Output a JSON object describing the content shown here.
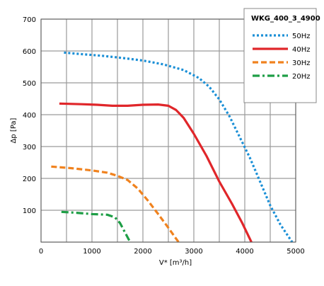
{
  "chart_data": {
    "type": "line",
    "title": "",
    "xlabel": "V* [m³/h]",
    "ylabel": "Δp [Pa]",
    "xlim": [
      0,
      5000
    ],
    "ylim": [
      0,
      700
    ],
    "x_ticks": [
      0,
      500,
      1000,
      1500,
      2000,
      2500,
      3000,
      3500,
      4000,
      4500,
      5000
    ],
    "x_tick_labels": [
      "0",
      "",
      "1000",
      "",
      "2000",
      "",
      "3000",
      "",
      "4000",
      "",
      "5000"
    ],
    "y_ticks": [
      0,
      100,
      200,
      300,
      400,
      500,
      600,
      700
    ],
    "y_tick_labels": [
      "",
      "100",
      "200",
      "300",
      "400",
      "500",
      "600",
      "700"
    ],
    "grid": true,
    "legend": {
      "title": "WKG_400_3_4900",
      "placement": "top-right"
    },
    "series": [
      {
        "name": "50Hz",
        "color": "#1a8fd6",
        "dash": "dotted",
        "points": [
          [
            450,
            595
          ],
          [
            800,
            590
          ],
          [
            1200,
            585
          ],
          [
            1600,
            578
          ],
          [
            2000,
            570
          ],
          [
            2400,
            558
          ],
          [
            2800,
            540
          ],
          [
            3100,
            515
          ],
          [
            3300,
            488
          ],
          [
            3500,
            448
          ],
          [
            3700,
            395
          ],
          [
            3900,
            330
          ],
          [
            4100,
            265
          ],
          [
            4300,
            190
          ],
          [
            4500,
            115
          ],
          [
            4700,
            55
          ],
          [
            4930,
            0
          ]
        ]
      },
      {
        "name": "40Hz",
        "color": "#e0262a",
        "dash": "solid",
        "points": [
          [
            360,
            435
          ],
          [
            800,
            433
          ],
          [
            1100,
            431
          ],
          [
            1400,
            428
          ],
          [
            1700,
            428
          ],
          [
            2000,
            431
          ],
          [
            2300,
            432
          ],
          [
            2500,
            428
          ],
          [
            2650,
            415
          ],
          [
            2800,
            390
          ],
          [
            3000,
            340
          ],
          [
            3250,
            270
          ],
          [
            3500,
            190
          ],
          [
            3750,
            120
          ],
          [
            3950,
            60
          ],
          [
            4130,
            0
          ]
        ]
      },
      {
        "name": "30Hz",
        "color": "#f0821e",
        "dash": "dashed",
        "points": [
          [
            200,
            237
          ],
          [
            600,
            232
          ],
          [
            1000,
            225
          ],
          [
            1300,
            218
          ],
          [
            1500,
            208
          ],
          [
            1700,
            195
          ],
          [
            1900,
            168
          ],
          [
            2100,
            130
          ],
          [
            2300,
            88
          ],
          [
            2500,
            45
          ],
          [
            2700,
            0
          ]
        ]
      },
      {
        "name": "20Hz",
        "color": "#1e9e46",
        "dash": "dashdot",
        "points": [
          [
            400,
            95
          ],
          [
            700,
            92
          ],
          [
            1000,
            88
          ],
          [
            1300,
            86
          ],
          [
            1450,
            78
          ],
          [
            1550,
            60
          ],
          [
            1650,
            30
          ],
          [
            1750,
            0
          ]
        ]
      }
    ]
  }
}
